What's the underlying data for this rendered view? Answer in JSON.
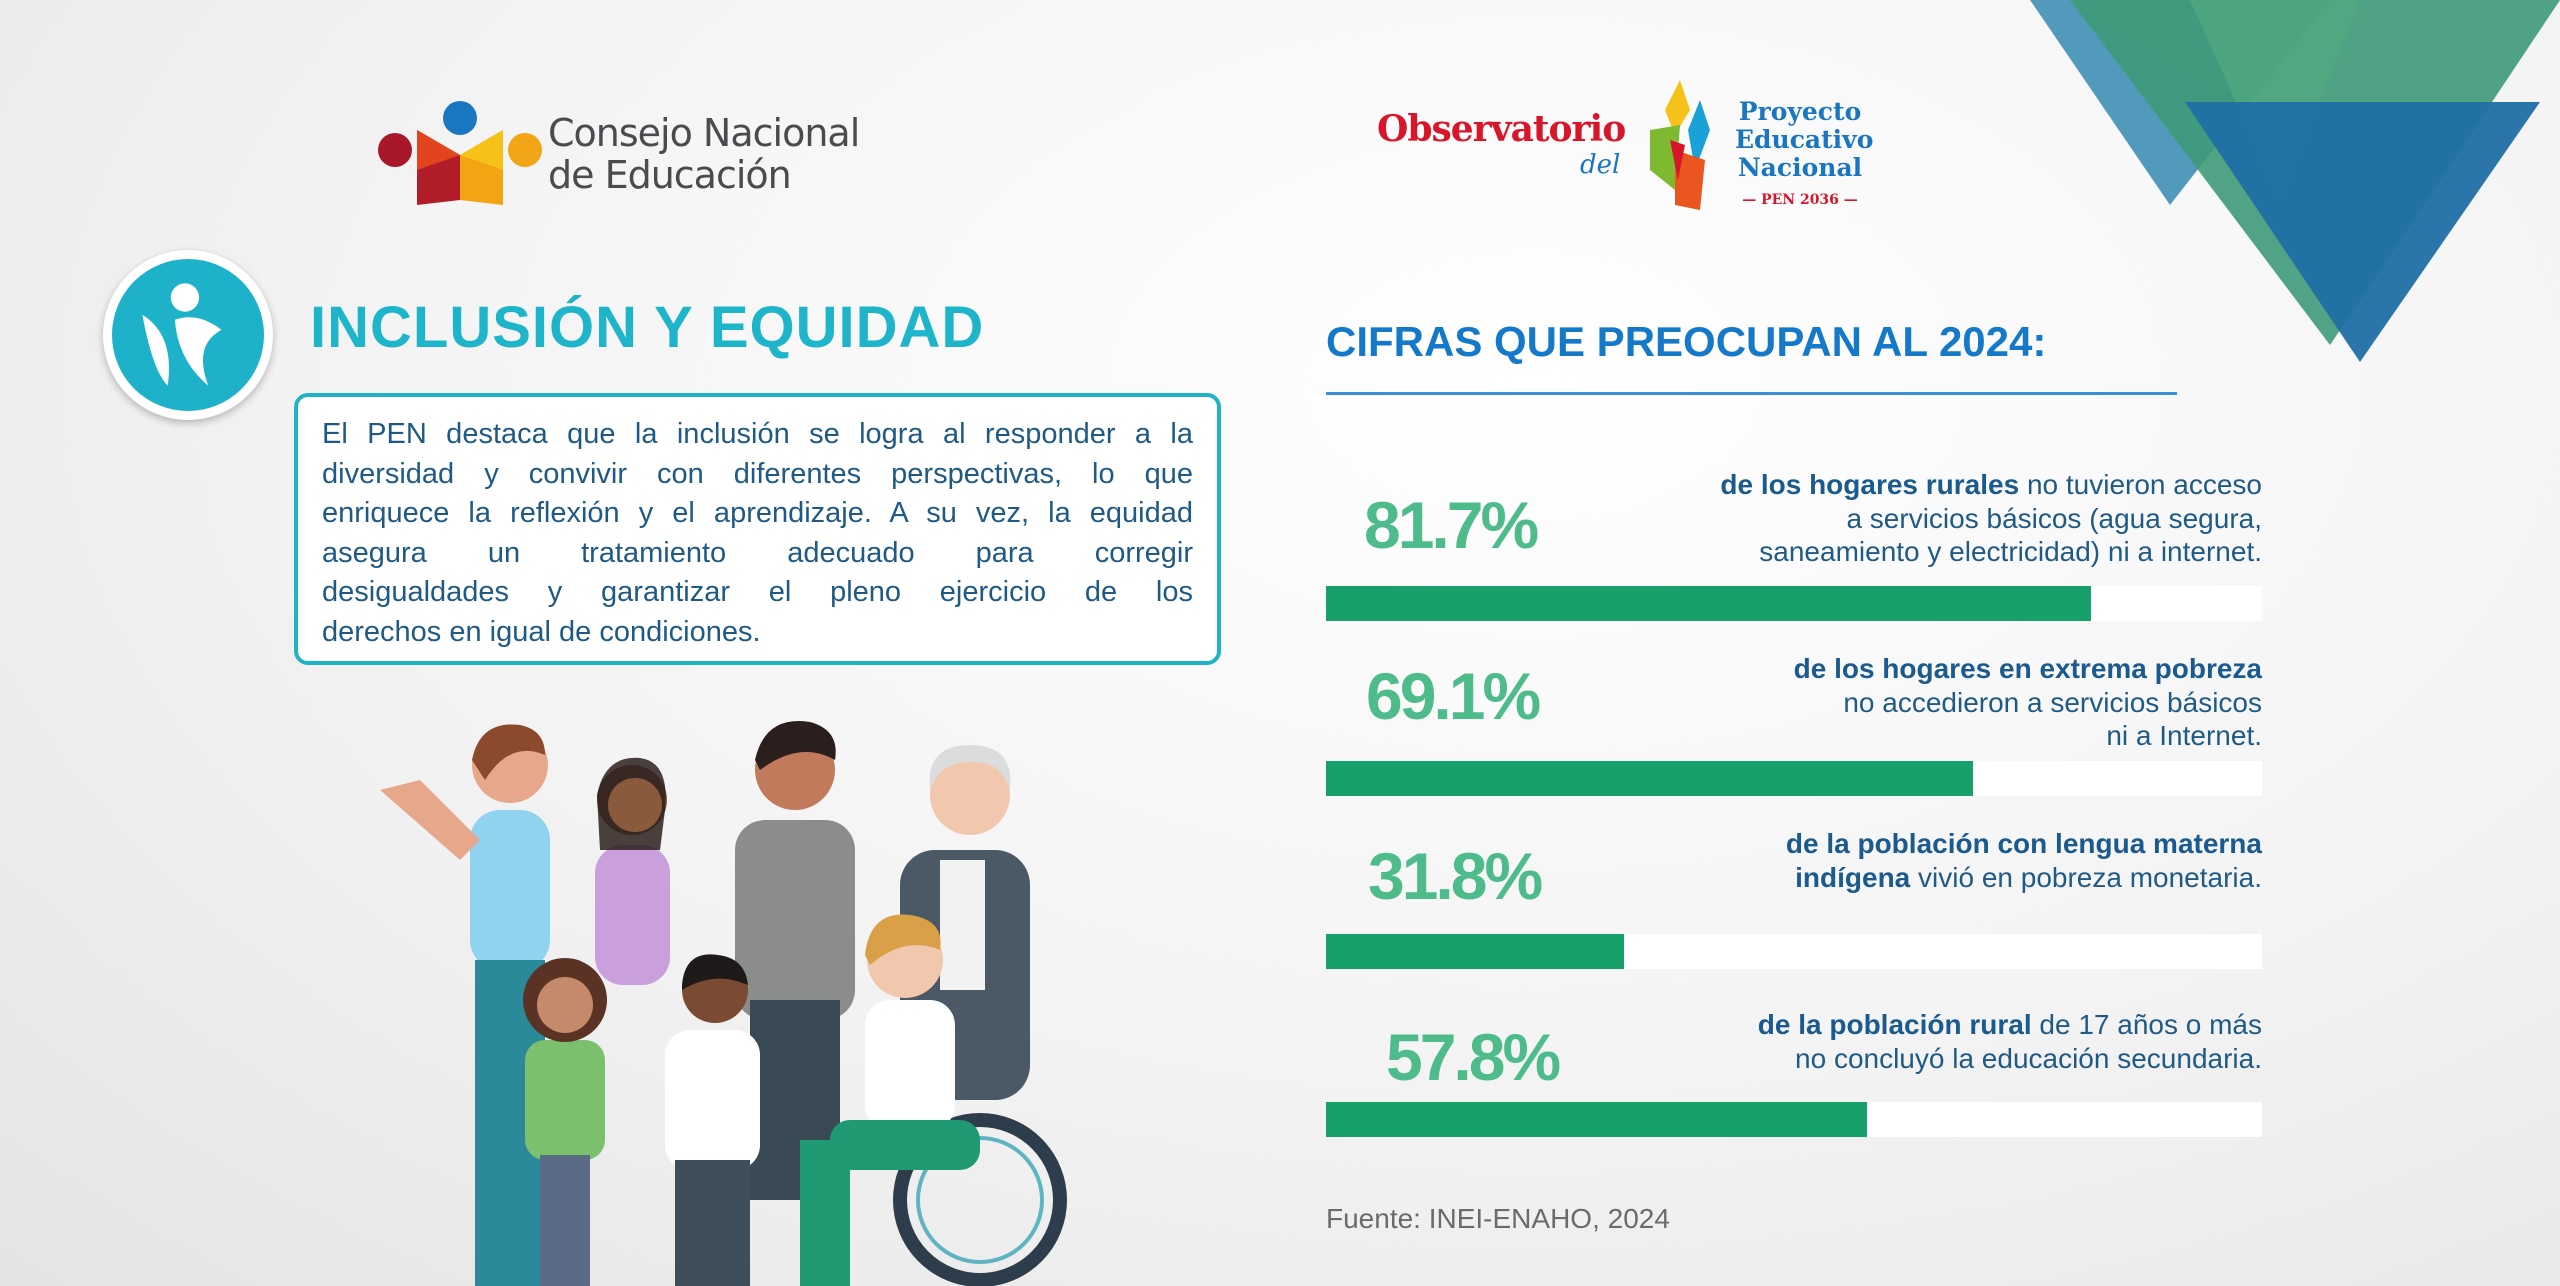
{
  "logos": {
    "cne": {
      "line1": "Consejo Nacional",
      "line2": "de Educación"
    },
    "observatorio": {
      "title": "Observatorio",
      "del": "del",
      "pen_lines": [
        "Proyecto",
        "Educativo",
        "Nacional"
      ],
      "pen_year": "— PEN 2036 —"
    }
  },
  "section": {
    "title": "INCLUSIÓN Y EQUIDAD",
    "icon": "inclusion-people-icon",
    "description_lines": [
      "El PEN destaca que la inclusión se logra al responder a la",
      "diversidad y convivir con diferentes perspectivas, lo que",
      "enriquece la reflexión y el aprendizaje. A su vez, la equidad",
      "asegura un tratamiento adecuado para corregir",
      "desigualdades y garantizar el pleno ejercicio de los",
      "derechos en igual de condiciones."
    ]
  },
  "cifras": {
    "title": "CIFRAS QUE PREOCUPAN AL 2024:",
    "stats": [
      {
        "percent_label": "81.7%",
        "value": 81.7,
        "bold": "de los hogares rurales",
        "rest_lines": [
          " no tuvieron acceso",
          "a servicios básicos (agua segura,",
          "saneamiento y electricidad) ni a internet."
        ]
      },
      {
        "percent_label": "69.1%",
        "value": 69.1,
        "bold": "de los hogares en extrema pobreza",
        "rest_lines": [
          "",
          "no accedieron a servicios básicos",
          "ni a Internet."
        ]
      },
      {
        "percent_label": "31.8%",
        "value": 31.8,
        "bold": "de la población con lengua materna",
        "bold2": "indígena",
        "rest_lines": [
          "",
          " vivió en pobreza monetaria."
        ]
      },
      {
        "percent_label": "57.8%",
        "value": 57.8,
        "bold": "de la población rural",
        "rest_lines": [
          " de 17 años o más",
          "no concluyó la educación secundaria."
        ]
      }
    ],
    "source": "Fuente:  INEI-ENAHO, 2024"
  },
  "colors": {
    "teal": "#1eb4c9",
    "blue": "#1479c9",
    "green": "#17a06a",
    "pct_green": "#4dbb8a"
  }
}
